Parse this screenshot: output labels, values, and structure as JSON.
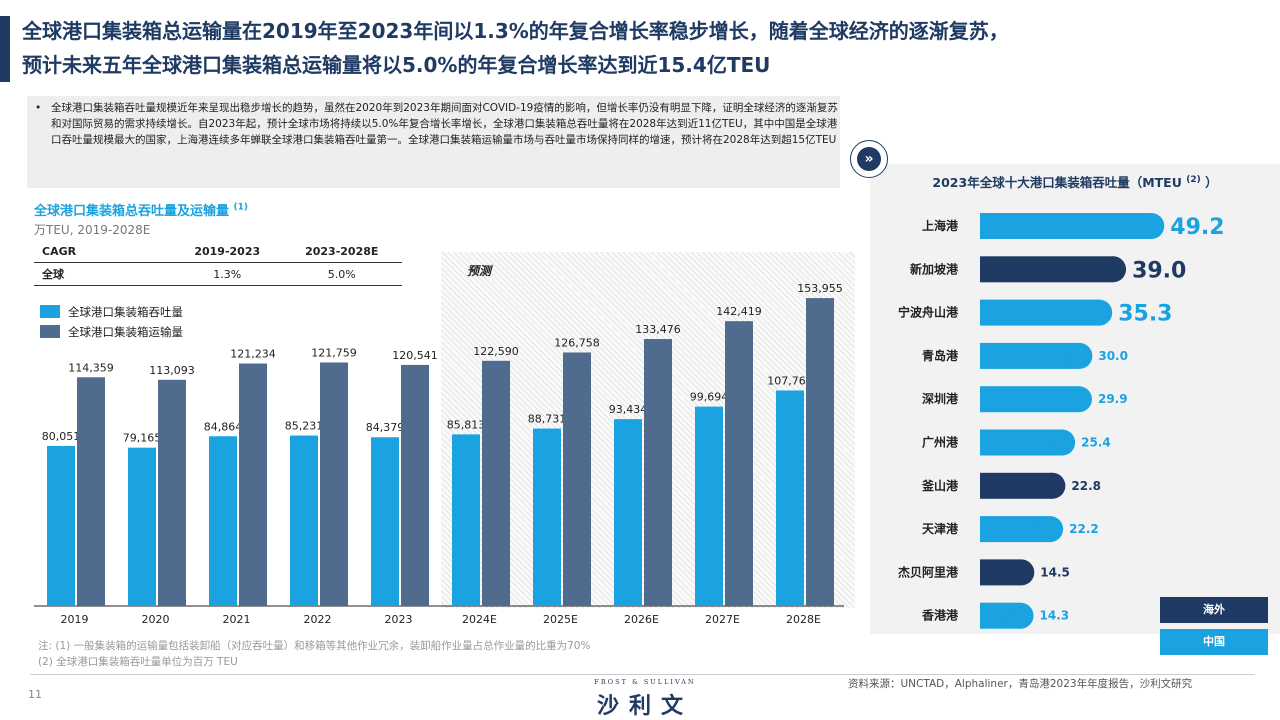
{
  "title": {
    "line1": "全球港口集装箱总运输量在2019年至2023年间以1.3%的年复合增长率稳步增长，随着全球经济的逐渐复苏，",
    "line2": "预计未来五年全球港口集装箱总运输量将以5.0%的年复合增长率达到近15.4亿TEU"
  },
  "summary": {
    "bullet": "•",
    "text": "全球港口集装箱吞吐量规模近年来呈现出稳步增长的趋势，虽然在2020年到2023年期间面对COVID-19疫情的影响，但增长率仍没有明显下降，证明全球经济的逐渐复苏和对国际贸易的需求持续增长。自2023年起，预计全球市场将持续以5.0%年复合增长率增长，全球港口集装箱总吞吐量将在2028年达到近11亿TEU，其中中国是全球港口吞吐量规模最大的国家，上海港连续多年蝉联全球港口集装箱吞吐量第一。全球港口集装箱运输量市场与吞吐量市场保持同样的增速，预计将在2028年达到超15亿TEU"
  },
  "left_chart": {
    "title": "全球港口集装箱总吞吐量及运输量",
    "title_note": "(1)",
    "unit": "万TEU, 2019-2028E",
    "cagr_table": {
      "headers": [
        "CAGR",
        "2019-2023",
        "2023-2028E"
      ],
      "rows": [
        [
          "全球",
          "1.3%",
          "5.0%"
        ]
      ]
    },
    "forecast_label": "预测"
  },
  "right_chart": {
    "title": "2023年全球十大港口集装箱吞吐量（MTEU",
    "title_note": "(2)",
    "title_close": "）",
    "legend": [
      {
        "label": "海外",
        "color": "#1f3a63"
      },
      {
        "label": "中国",
        "color": "#1aa3e0"
      }
    ]
  },
  "chart_data": [
    {
      "type": "bar",
      "title": "全球港口集装箱总吞吐量及运输量",
      "ylabel": "万TEU",
      "categories": [
        "2019",
        "2020",
        "2021",
        "2022",
        "2023",
        "2024E",
        "2025E",
        "2026E",
        "2027E",
        "2028E"
      ],
      "series": [
        {
          "name": "全球港口集装箱吞吐量",
          "color": "#1aa3e0",
          "values": [
            80051,
            79165,
            84864,
            85231,
            84379,
            85813,
            88731,
            93434,
            99694,
            107769
          ]
        },
        {
          "name": "全球港口集装箱运输量",
          "color": "#4f6b8e",
          "values": [
            114359,
            113093,
            121234,
            121759,
            120541,
            122590,
            126758,
            133476,
            142419,
            153955
          ]
        }
      ],
      "value_labels": [
        [
          "80,051",
          "79,165",
          "84,864",
          "85,231",
          "84,379",
          "85,813",
          "88,731",
          "93,434",
          "99,694",
          "107,769"
        ],
        [
          "114,359",
          "113,093",
          "121,234",
          "121,759",
          "120,541",
          "122,590",
          "126,758",
          "133,476",
          "142,419",
          "153,955"
        ]
      ],
      "ylim": [
        0,
        170000
      ],
      "grid": false,
      "legend": "top-left"
    },
    {
      "type": "bar",
      "orientation": "horizontal",
      "title": "2023年全球十大港口集装箱吞吐量（MTEU）",
      "categories": [
        "上海港",
        "新加坡港",
        "宁波舟山港",
        "青岛港",
        "深圳港",
        "广州港",
        "釜山港",
        "天津港",
        "杰贝阿里港",
        "香港港"
      ],
      "values": [
        49.2,
        39.0,
        35.3,
        30.0,
        29.9,
        25.4,
        22.8,
        22.2,
        14.5,
        14.3
      ],
      "value_labels": [
        "49.2",
        "39.0",
        "35.3",
        "30.0",
        "29.9",
        "25.4",
        "22.8",
        "22.2",
        "14.5",
        "14.3"
      ],
      "groups": [
        "中国",
        "海外",
        "中国",
        "中国",
        "中国",
        "中国",
        "海外",
        "中国",
        "海外",
        "中国"
      ],
      "group_colors": {
        "中国": "#1aa3e0",
        "海外": "#1f3a63"
      },
      "label_colors": {
        "中国": "#1aa3e0",
        "海外": "#1f3a63"
      },
      "label_sizes": {
        "large": [
          0,
          1,
          2
        ]
      },
      "xlim": [
        0,
        55
      ],
      "legend": "bottom-right"
    }
  ],
  "footer": {
    "note1": "注: (1) 一般集装箱的运输量包括装卸船（对应吞吐量）和移箱等其他作业冗余，装卸船作业量占总作业量的比重为70%",
    "note2": "(2) 全球港口集装箱吞吐量单位为百万 TEU",
    "page_number": "11",
    "source": "资料来源：UNCTAD，Alphaliner，青岛港2023年年度报告，沙利文研究",
    "logo_top": "FROST & SULLIVAN",
    "logo_main": "沙利文"
  }
}
